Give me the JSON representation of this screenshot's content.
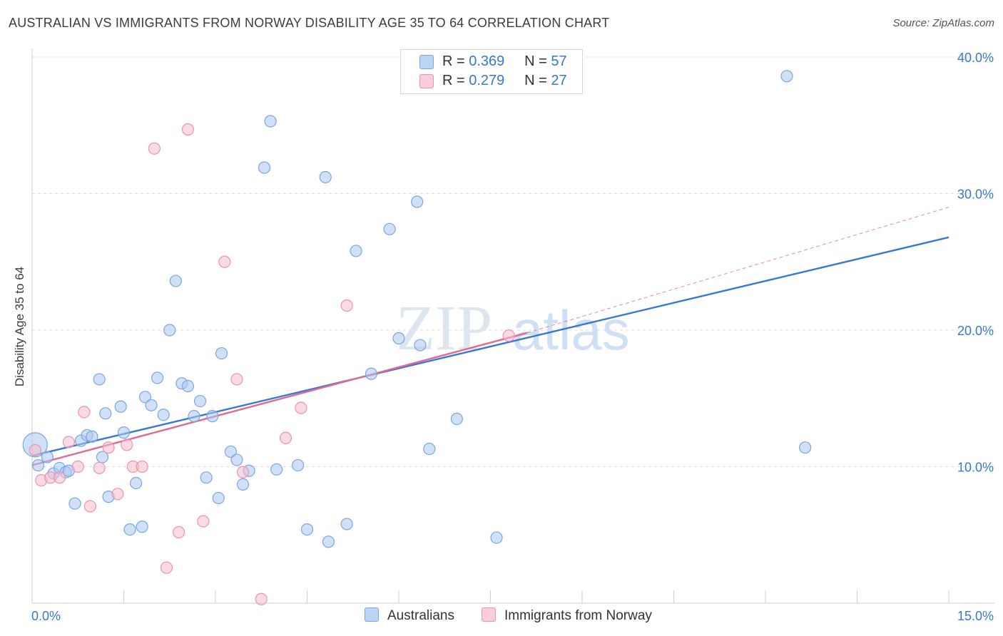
{
  "header": {
    "title": "AUSTRALIAN VS IMMIGRANTS FROM NORWAY DISABILITY AGE 35 TO 64 CORRELATION CHART",
    "source": "Source: ZipAtlas.com"
  },
  "legend": {
    "r_label": "R =",
    "n_label": "N =",
    "rows": [
      {
        "r": "0.369",
        "n": "57"
      },
      {
        "r": "0.279",
        "n": "27"
      }
    ]
  },
  "watermark": {
    "zip": "ZIP",
    "atlas": "atlas"
  },
  "colors": {
    "blue_fill": "#a9c8f0",
    "blue_stroke": "#7aa6df",
    "blue_line": "#3a78d0",
    "pink_fill": "#f6bccd",
    "pink_stroke": "#ea93ad",
    "pink_line": "#e06a93",
    "tick_label": "#3a78c8",
    "grid": "#dddddd"
  },
  "chart_data": {
    "type": "scatter",
    "title": "AUSTRALIAN VS IMMIGRANTS FROM NORWAY DISABILITY AGE 35 TO 64 CORRELATION CHART",
    "xlabel": "",
    "ylabel": "Disability Age 35 to 64",
    "xlim": [
      0,
      15
    ],
    "ylim": [
      0,
      40
    ],
    "x_tick_labels": [
      "0.0%",
      "15.0%"
    ],
    "y_ticks": [
      10,
      20,
      30,
      40
    ],
    "y_tick_labels": [
      "10.0%",
      "20.0%",
      "30.0%",
      "40.0%"
    ],
    "grid": true,
    "legend_placement": "bottom",
    "series": [
      {
        "name": "Australians",
        "r": 0.369,
        "n": 57,
        "trend": {
          "x": [
            0,
            15
          ],
          "y": [
            10.8,
            26.8
          ],
          "dashed_extension": false
        },
        "points": [
          {
            "x": 0.05,
            "y": 11.6,
            "big": true
          },
          {
            "x": 0.1,
            "y": 10.1
          },
          {
            "x": 0.25,
            "y": 10.7
          },
          {
            "x": 0.35,
            "y": 9.5
          },
          {
            "x": 0.45,
            "y": 9.9
          },
          {
            "x": 0.55,
            "y": 9.6
          },
          {
            "x": 0.6,
            "y": 9.7
          },
          {
            "x": 0.7,
            "y": 7.3
          },
          {
            "x": 0.8,
            "y": 11.9
          },
          {
            "x": 0.9,
            "y": 12.3
          },
          {
            "x": 0.98,
            "y": 12.2
          },
          {
            "x": 1.1,
            "y": 16.4
          },
          {
            "x": 1.15,
            "y": 10.7
          },
          {
            "x": 1.2,
            "y": 13.9
          },
          {
            "x": 1.25,
            "y": 7.8
          },
          {
            "x": 1.45,
            "y": 14.4
          },
          {
            "x": 1.5,
            "y": 12.5
          },
          {
            "x": 1.6,
            "y": 5.4
          },
          {
            "x": 1.7,
            "y": 8.8
          },
          {
            "x": 1.8,
            "y": 5.6
          },
          {
            "x": 1.85,
            "y": 15.1
          },
          {
            "x": 1.95,
            "y": 14.5
          },
          {
            "x": 2.05,
            "y": 16.5
          },
          {
            "x": 2.15,
            "y": 13.8
          },
          {
            "x": 2.25,
            "y": 20.0
          },
          {
            "x": 2.35,
            "y": 23.6
          },
          {
            "x": 2.45,
            "y": 16.1
          },
          {
            "x": 2.55,
            "y": 15.9
          },
          {
            "x": 2.65,
            "y": 13.7
          },
          {
            "x": 2.75,
            "y": 14.8
          },
          {
            "x": 2.85,
            "y": 9.2
          },
          {
            "x": 2.95,
            "y": 13.7
          },
          {
            "x": 3.05,
            "y": 7.7
          },
          {
            "x": 3.1,
            "y": 18.3
          },
          {
            "x": 3.25,
            "y": 11.1
          },
          {
            "x": 3.35,
            "y": 10.5
          },
          {
            "x": 3.45,
            "y": 8.7
          },
          {
            "x": 3.55,
            "y": 9.7
          },
          {
            "x": 3.8,
            "y": 31.9
          },
          {
            "x": 3.9,
            "y": 35.3
          },
          {
            "x": 4.0,
            "y": 9.8
          },
          {
            "x": 4.35,
            "y": 10.1
          },
          {
            "x": 4.5,
            "y": 5.4
          },
          {
            "x": 4.8,
            "y": 31.2
          },
          {
            "x": 4.85,
            "y": 4.5
          },
          {
            "x": 5.15,
            "y": 5.8
          },
          {
            "x": 5.3,
            "y": 25.8
          },
          {
            "x": 5.55,
            "y": 16.8
          },
          {
            "x": 5.85,
            "y": 27.4
          },
          {
            "x": 6.0,
            "y": 19.4
          },
          {
            "x": 6.3,
            "y": 29.4
          },
          {
            "x": 6.35,
            "y": 18.9
          },
          {
            "x": 6.5,
            "y": 11.3
          },
          {
            "x": 6.95,
            "y": 13.5
          },
          {
            "x": 7.6,
            "y": 4.8
          },
          {
            "x": 12.35,
            "y": 38.6
          },
          {
            "x": 12.65,
            "y": 11.4
          }
        ]
      },
      {
        "name": "Immigrants from Norway",
        "r": 0.279,
        "n": 27,
        "trend": {
          "x": [
            0,
            8.1
          ],
          "y": [
            10.1,
            19.8
          ],
          "dashed_extension": true,
          "extension_to": [
            15,
            29.0
          ]
        },
        "points": [
          {
            "x": 0.05,
            "y": 11.2
          },
          {
            "x": 0.15,
            "y": 9.0
          },
          {
            "x": 0.3,
            "y": 9.2
          },
          {
            "x": 0.45,
            "y": 9.2
          },
          {
            "x": 0.6,
            "y": 11.8
          },
          {
            "x": 0.75,
            "y": 10.0
          },
          {
            "x": 0.85,
            "y": 14.0
          },
          {
            "x": 0.95,
            "y": 7.1
          },
          {
            "x": 1.1,
            "y": 9.9
          },
          {
            "x": 1.25,
            "y": 11.4
          },
          {
            "x": 1.4,
            "y": 8.0
          },
          {
            "x": 1.55,
            "y": 11.6
          },
          {
            "x": 1.65,
            "y": 10.0
          },
          {
            "x": 1.8,
            "y": 10.0
          },
          {
            "x": 2.0,
            "y": 33.3
          },
          {
            "x": 2.2,
            "y": 2.6
          },
          {
            "x": 2.4,
            "y": 5.2
          },
          {
            "x": 2.55,
            "y": 34.7
          },
          {
            "x": 2.8,
            "y": 6.0
          },
          {
            "x": 3.15,
            "y": 25.0
          },
          {
            "x": 3.35,
            "y": 16.4
          },
          {
            "x": 3.45,
            "y": 9.6
          },
          {
            "x": 3.75,
            "y": 0.3
          },
          {
            "x": 4.15,
            "y": 12.1
          },
          {
            "x": 4.4,
            "y": 14.3
          },
          {
            "x": 5.15,
            "y": 21.8
          },
          {
            "x": 7.8,
            "y": 19.6
          }
        ]
      }
    ]
  }
}
